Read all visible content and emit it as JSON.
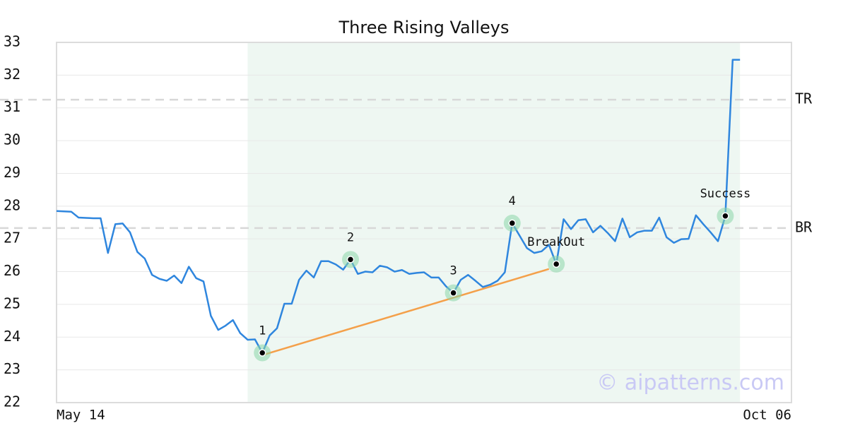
{
  "chart_data": {
    "type": "line",
    "title": "Three Rising Valleys",
    "categories": [
      "May 14",
      null,
      null,
      null,
      null,
      null,
      null,
      null,
      null,
      null,
      null,
      null,
      null,
      null,
      null,
      null,
      null,
      null,
      null,
      null,
      null,
      null,
      null,
      null,
      null,
      null,
      null,
      null,
      null,
      null,
      null,
      null,
      null,
      null,
      null,
      null,
      null,
      null,
      null,
      null,
      null,
      null,
      null,
      null,
      null,
      null,
      null,
      null,
      null,
      null,
      null,
      null,
      null,
      null,
      null,
      null,
      null,
      null,
      null,
      null,
      null,
      null,
      null,
      null,
      null,
      null,
      null,
      null,
      null,
      null,
      null,
      null,
      null,
      null,
      null,
      null,
      null,
      null,
      null,
      null,
      null,
      null,
      null,
      null,
      null,
      null,
      null,
      null,
      null,
      null,
      null,
      null,
      null,
      null,
      null,
      null,
      null,
      null,
      null,
      null,
      "Oct 06"
    ],
    "series": [
      {
        "color": "#2f86de",
        "values": [
          27.85,
          27.84,
          27.83,
          27.65,
          27.64,
          27.63,
          27.63,
          26.57,
          27.45,
          27.47,
          27.2,
          26.6,
          26.4,
          25.9,
          25.78,
          25.72,
          25.88,
          25.65,
          26.15,
          25.8,
          25.7,
          24.65,
          24.22,
          24.35,
          24.52,
          24.12,
          23.92,
          23.93,
          23.52,
          24.05,
          24.27,
          25.02,
          25.02,
          25.75,
          26.03,
          25.82,
          26.32,
          26.32,
          26.22,
          26.06,
          26.37,
          25.93,
          26.0,
          25.98,
          26.18,
          26.13,
          26.0,
          26.05,
          25.93,
          25.96,
          25.98,
          25.82,
          25.82,
          25.55,
          25.35,
          25.75,
          25.9,
          25.72,
          25.53,
          25.6,
          25.72,
          25.98,
          27.48,
          27.1,
          26.72,
          26.57,
          26.62,
          26.82,
          26.23,
          27.6,
          27.3,
          27.57,
          27.6,
          27.2,
          27.4,
          27.18,
          26.93,
          27.62,
          27.05,
          27.2,
          27.25,
          27.25,
          27.65,
          27.05,
          26.88,
          26.99,
          27.0,
          27.72,
          27.45,
          27.2,
          26.93,
          27.7,
          32.47,
          32.47,
          null,
          null,
          null,
          null,
          null,
          null,
          null
        ]
      }
    ],
    "ylim": [
      22,
      33
    ],
    "yticks": [
      22,
      23,
      24,
      25,
      26,
      27,
      28,
      29,
      30,
      31,
      32,
      33
    ],
    "grid": true,
    "shaded_range": [
      26,
      93
    ],
    "shade_color": "#eef7f2",
    "hlines": [
      {
        "label": "TR",
        "value": 31.25
      },
      {
        "label": "BR",
        "value": 27.33
      }
    ],
    "points": [
      {
        "label": "1",
        "index": 28
      },
      {
        "label": "2",
        "index": 40
      },
      {
        "label": "3",
        "index": 54
      },
      {
        "label": "4",
        "index": 62
      },
      {
        "label": "BreakOut",
        "index": 68
      },
      {
        "label": "Success",
        "index": 91
      }
    ],
    "trend": {
      "x": [
        28,
        67
      ],
      "y": [
        23.45,
        26.08
      ],
      "color": "#f4a04a"
    },
    "watermark": "© aipatterns.com"
  }
}
